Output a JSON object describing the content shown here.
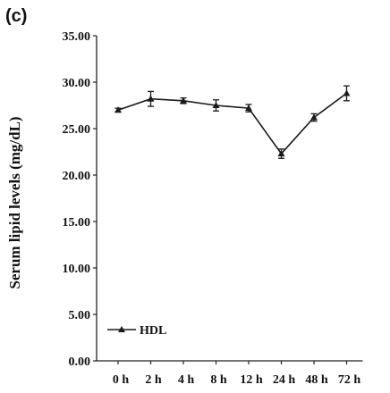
{
  "panel_label": "(c)",
  "chart_data": {
    "type": "line",
    "title": "",
    "xlabel": "",
    "ylabel": "Serum lipid levels (mg/dL)",
    "categories": [
      "0 h",
      "2 h",
      "4 h",
      "8 h",
      "12 h",
      "24 h",
      "48 h",
      "72 h"
    ],
    "ylim": [
      0,
      35
    ],
    "yticks": [
      "0.00",
      "5.00",
      "10.00",
      "15.00",
      "20.00",
      "25.00",
      "30.00",
      "35.00"
    ],
    "grid": false,
    "legend_position": "bottom-left",
    "series": [
      {
        "name": "HDL",
        "color": "#1a1a1a",
        "marker": "triangle",
        "values": [
          27.0,
          28.2,
          28.0,
          27.5,
          27.2,
          22.3,
          26.2,
          28.8
        ],
        "errors": [
          0.2,
          0.8,
          0.3,
          0.6,
          0.4,
          0.5,
          0.4,
          0.8
        ]
      }
    ]
  }
}
